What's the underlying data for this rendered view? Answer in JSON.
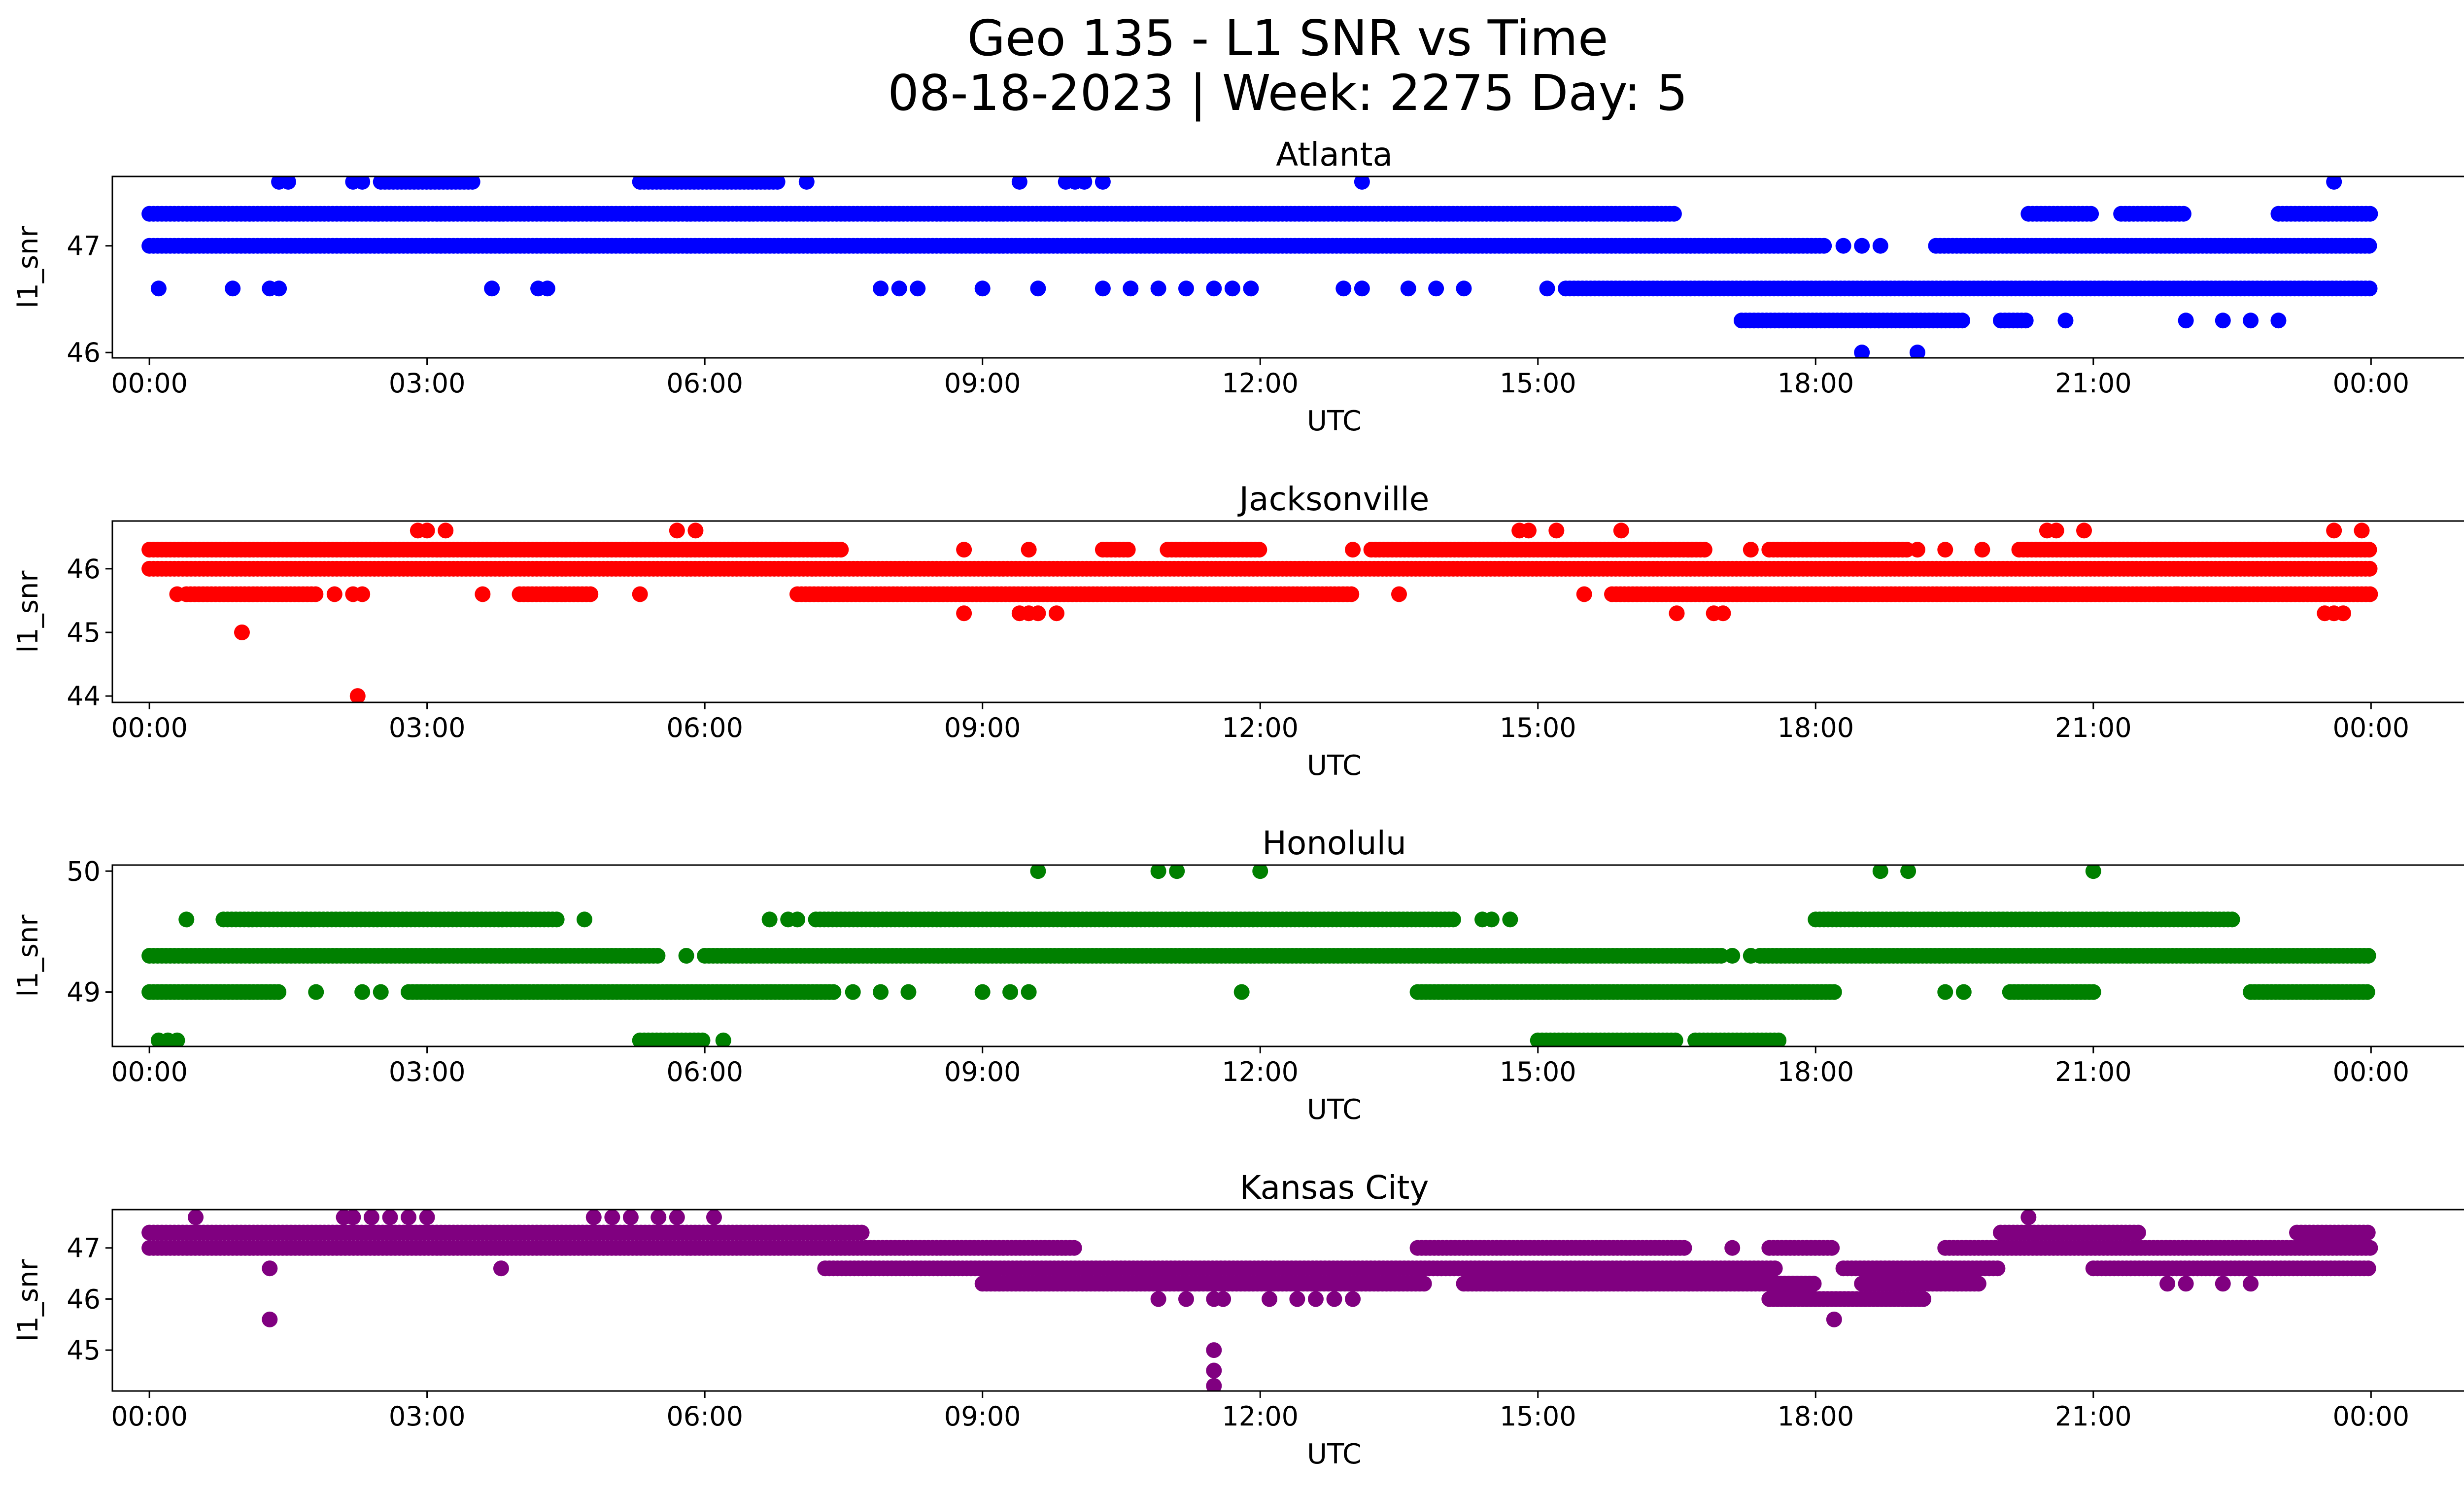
{
  "figure": {
    "title_line1": "Geo 135 - L1 SNR vs Time",
    "title_line2": "08-18-2023 | Week: 2275 Day: 5"
  },
  "chart_data": [
    {
      "type": "scatter",
      "title": "Atlanta",
      "xlabel": "UTC",
      "ylabel": "l1_snr",
      "color": "#0000ff",
      "xlim": [
        -0.4,
        26.0
      ],
      "ylim": [
        45.95,
        47.65
      ],
      "yticks": [
        46,
        47
      ],
      "xticks": [
        "00:00",
        "03:00",
        "06:00",
        "09:00",
        "12:00",
        "15:00",
        "18:00",
        "21:00",
        "00:00"
      ],
      "bands": [
        {
          "y": 47.3,
          "segments": [
            [
              0.0,
              16.5
            ],
            [
              20.3,
              21.0
            ],
            [
              21.3,
              22.0
            ],
            [
              23.0,
              24.0
            ]
          ]
        },
        {
          "y": 47.0,
          "segments": [
            [
              0.0,
              18.1
            ],
            [
              19.3,
              24.0
            ]
          ]
        },
        {
          "y": 46.6,
          "segments": [
            [
              15.3,
              24.0
            ]
          ]
        },
        {
          "y": 46.3,
          "segments": [
            [
              17.2,
              19.6
            ],
            [
              20.0,
              20.3
            ]
          ]
        },
        {
          "y": 47.6,
          "segments": [
            [
              2.5,
              3.5
            ],
            [
              5.3,
              6.8
            ]
          ]
        }
      ],
      "points": [
        [
          0.1,
          46.6
        ],
        [
          0.9,
          46.6
        ],
        [
          1.3,
          46.6
        ],
        [
          1.4,
          46.6
        ],
        [
          3.7,
          46.6
        ],
        [
          4.2,
          46.6
        ],
        [
          4.3,
          46.6
        ],
        [
          7.9,
          46.6
        ],
        [
          8.1,
          46.6
        ],
        [
          8.3,
          46.6
        ],
        [
          9.0,
          46.6
        ],
        [
          9.6,
          46.6
        ],
        [
          10.3,
          46.6
        ],
        [
          10.6,
          46.6
        ],
        [
          10.9,
          46.6
        ],
        [
          11.2,
          46.6
        ],
        [
          11.5,
          46.6
        ],
        [
          11.7,
          46.6
        ],
        [
          11.9,
          46.6
        ],
        [
          12.9,
          46.6
        ],
        [
          13.1,
          46.6
        ],
        [
          13.6,
          46.6
        ],
        [
          13.9,
          46.6
        ],
        [
          14.2,
          46.6
        ],
        [
          15.1,
          46.6
        ],
        [
          1.4,
          47.6
        ],
        [
          1.5,
          47.6
        ],
        [
          2.2,
          47.6
        ],
        [
          2.3,
          47.6
        ],
        [
          7.1,
          47.6
        ],
        [
          9.4,
          47.6
        ],
        [
          9.9,
          47.6
        ],
        [
          10.0,
          47.6
        ],
        [
          10.1,
          47.6
        ],
        [
          10.3,
          47.6
        ],
        [
          13.1,
          47.6
        ],
        [
          23.6,
          47.6
        ],
        [
          18.5,
          46.0
        ],
        [
          19.1,
          46.0
        ],
        [
          18.3,
          47.0
        ],
        [
          18.5,
          47.0
        ],
        [
          18.7,
          47.0
        ],
        [
          20.7,
          46.3
        ],
        [
          22.0,
          46.3
        ],
        [
          22.4,
          46.3
        ],
        [
          22.7,
          46.3
        ],
        [
          23.0,
          46.3
        ]
      ]
    },
    {
      "type": "scatter",
      "title": "Jacksonville",
      "xlabel": "UTC",
      "ylabel": "l1_snr",
      "color": "#ff0000",
      "xlim": [
        -0.4,
        26.0
      ],
      "ylim": [
        43.9,
        46.75
      ],
      "yticks": [
        44,
        45,
        46
      ],
      "xticks": [
        "00:00",
        "03:00",
        "06:00",
        "09:00",
        "12:00",
        "15:00",
        "18:00",
        "21:00",
        "00:00"
      ],
      "bands": [
        {
          "y": 46.3,
          "segments": [
            [
              0.0,
              4.5
            ],
            [
              4.5,
              7.5
            ],
            [
              10.3,
              10.6
            ],
            [
              11.0,
              12.0
            ],
            [
              13.2,
              16.8
            ],
            [
              17.5,
              19.0
            ],
            [
              20.2,
              24.0
            ]
          ]
        },
        {
          "y": 46.0,
          "segments": [
            [
              0.0,
              24.0
            ]
          ]
        },
        {
          "y": 45.6,
          "segments": [
            [
              0.4,
              1.8
            ],
            [
              4.0,
              4.8
            ],
            [
              7.0,
              13.0
            ],
            [
              15.8,
              24.0
            ]
          ]
        }
      ],
      "points": [
        [
          2.9,
          46.6
        ],
        [
          3.0,
          46.6
        ],
        [
          3.2,
          46.6
        ],
        [
          5.7,
          46.6
        ],
        [
          5.9,
          46.6
        ],
        [
          14.8,
          46.6
        ],
        [
          14.9,
          46.6
        ],
        [
          15.2,
          46.6
        ],
        [
          15.9,
          46.6
        ],
        [
          20.5,
          46.6
        ],
        [
          20.6,
          46.6
        ],
        [
          20.9,
          46.6
        ],
        [
          23.6,
          46.6
        ],
        [
          23.9,
          46.6
        ],
        [
          0.3,
          45.6
        ],
        [
          2.0,
          45.6
        ],
        [
          2.2,
          45.6
        ],
        [
          2.3,
          45.6
        ],
        [
          3.6,
          45.6
        ],
        [
          5.3,
          45.6
        ],
        [
          13.5,
          45.6
        ],
        [
          15.5,
          45.6
        ],
        [
          20.7,
          45.6
        ],
        [
          21.7,
          45.6
        ],
        [
          21.9,
          45.6
        ],
        [
          8.8,
          45.3
        ],
        [
          9.4,
          45.3
        ],
        [
          9.5,
          45.3
        ],
        [
          9.6,
          45.3
        ],
        [
          9.8,
          45.3
        ],
        [
          16.5,
          45.3
        ],
        [
          16.9,
          45.3
        ],
        [
          17.0,
          45.3
        ],
        [
          23.5,
          45.3
        ],
        [
          23.6,
          45.3
        ],
        [
          23.7,
          45.3
        ],
        [
          8.8,
          46.3
        ],
        [
          9.5,
          46.3
        ],
        [
          13.0,
          46.3
        ],
        [
          17.3,
          46.3
        ],
        [
          19.1,
          46.3
        ],
        [
          19.4,
          46.3
        ],
        [
          19.8,
          46.3
        ],
        [
          1.0,
          45.0
        ],
        [
          2.25,
          44.0
        ]
      ]
    },
    {
      "type": "scatter",
      "title": "Honolulu",
      "xlabel": "UTC",
      "ylabel": "l1_snr",
      "color": "#008000",
      "xlim": [
        -0.4,
        26.0
      ],
      "ylim": [
        48.55,
        50.05
      ],
      "yticks": [
        49,
        50
      ],
      "xticks": [
        "00:00",
        "03:00",
        "06:00",
        "09:00",
        "12:00",
        "15:00",
        "18:00",
        "21:00",
        "00:00"
      ],
      "bands": [
        {
          "y": 49.6,
          "segments": [
            [
              0.8,
              4.4
            ],
            [
              7.2,
              14.1
            ],
            [
              18.0,
              22.5
            ]
          ]
        },
        {
          "y": 49.3,
          "segments": [
            [
              0.0,
              5.5
            ],
            [
              6.0,
              17.0
            ],
            [
              17.4,
              24.0
            ]
          ]
        },
        {
          "y": 49.0,
          "segments": [
            [
              0.0,
              1.4
            ],
            [
              2.8,
              7.4
            ],
            [
              13.7,
              18.2
            ],
            [
              20.1,
              21.0
            ],
            [
              22.7,
              24.0
            ]
          ]
        },
        {
          "y": 48.6,
          "segments": [
            [
              5.3,
              6.0
            ],
            [
              15.0,
              16.5
            ],
            [
              16.7,
              17.6
            ]
          ]
        }
      ],
      "points": [
        [
          0.4,
          49.6
        ],
        [
          4.7,
          49.6
        ],
        [
          6.7,
          49.6
        ],
        [
          6.9,
          49.6
        ],
        [
          7.0,
          49.6
        ],
        [
          14.4,
          49.6
        ],
        [
          14.5,
          49.6
        ],
        [
          14.7,
          49.6
        ],
        [
          1.8,
          49.0
        ],
        [
          2.3,
          49.0
        ],
        [
          2.5,
          49.0
        ],
        [
          7.6,
          49.0
        ],
        [
          7.9,
          49.0
        ],
        [
          8.2,
          49.0
        ],
        [
          9.0,
          49.0
        ],
        [
          9.3,
          49.0
        ],
        [
          9.5,
          49.0
        ],
        [
          11.8,
          49.0
        ],
        [
          19.4,
          49.0
        ],
        [
          19.6,
          49.0
        ],
        [
          5.8,
          49.3
        ],
        [
          17.1,
          49.3
        ],
        [
          17.3,
          49.3
        ],
        [
          0.1,
          48.6
        ],
        [
          0.2,
          48.6
        ],
        [
          0.3,
          48.6
        ],
        [
          6.2,
          48.6
        ],
        [
          9.6,
          50.0
        ],
        [
          10.9,
          50.0
        ],
        [
          11.1,
          50.0
        ],
        [
          12.0,
          50.0
        ],
        [
          18.7,
          50.0
        ],
        [
          19.0,
          50.0
        ],
        [
          21.0,
          50.0
        ]
      ]
    },
    {
      "type": "scatter",
      "title": "Kansas City",
      "xlabel": "UTC",
      "ylabel": "l1_snr",
      "color": "#800080",
      "xlim": [
        -0.4,
        26.0
      ],
      "ylim": [
        44.2,
        47.75
      ],
      "yticks": [
        45,
        46,
        47
      ],
      "xticks": [
        "00:00",
        "03:00",
        "06:00",
        "09:00",
        "12:00",
        "15:00",
        "18:00",
        "21:00",
        "00:00"
      ],
      "bands": [
        {
          "y": 47.3,
          "segments": [
            [
              0.0,
              7.7
            ],
            [
              20.0,
              21.5
            ],
            [
              23.2,
              24.0
            ]
          ]
        },
        {
          "y": 47.0,
          "segments": [
            [
              0.0,
              10.0
            ],
            [
              13.7,
              16.6
            ],
            [
              17.5,
              18.2
            ],
            [
              19.4,
              24.0
            ]
          ]
        },
        {
          "y": 46.6,
          "segments": [
            [
              7.3,
              17.6
            ],
            [
              18.3,
              20.0
            ],
            [
              21.0,
              24.0
            ]
          ]
        },
        {
          "y": 46.3,
          "segments": [
            [
              9.0,
              13.8
            ],
            [
              14.2,
              18.0
            ],
            [
              18.5,
              19.8
            ]
          ]
        },
        {
          "y": 46.0,
          "segments": [
            [
              17.5,
              19.2
            ]
          ]
        }
      ],
      "points": [
        [
          0.5,
          47.6
        ],
        [
          2.1,
          47.6
        ],
        [
          2.2,
          47.6
        ],
        [
          2.4,
          47.6
        ],
        [
          2.6,
          47.6
        ],
        [
          2.8,
          47.6
        ],
        [
          3.0,
          47.6
        ],
        [
          4.8,
          47.6
        ],
        [
          5.0,
          47.6
        ],
        [
          5.2,
          47.6
        ],
        [
          5.5,
          47.6
        ],
        [
          5.7,
          47.6
        ],
        [
          6.1,
          47.6
        ],
        [
          20.3,
          47.6
        ],
        [
          1.3,
          46.6
        ],
        [
          3.8,
          46.6
        ],
        [
          1.3,
          45.6
        ],
        [
          18.2,
          45.6
        ],
        [
          10.9,
          46.0
        ],
        [
          11.2,
          46.0
        ],
        [
          11.5,
          46.0
        ],
        [
          11.6,
          46.0
        ],
        [
          12.1,
          46.0
        ],
        [
          12.4,
          46.0
        ],
        [
          12.6,
          46.0
        ],
        [
          12.8,
          46.0
        ],
        [
          13.0,
          46.0
        ],
        [
          11.5,
          45.0
        ],
        [
          11.5,
          44.6
        ],
        [
          11.5,
          44.3
        ],
        [
          17.1,
          47.0
        ],
        [
          21.8,
          46.3
        ],
        [
          22.0,
          46.3
        ],
        [
          22.4,
          46.3
        ],
        [
          22.7,
          46.3
        ]
      ]
    }
  ]
}
